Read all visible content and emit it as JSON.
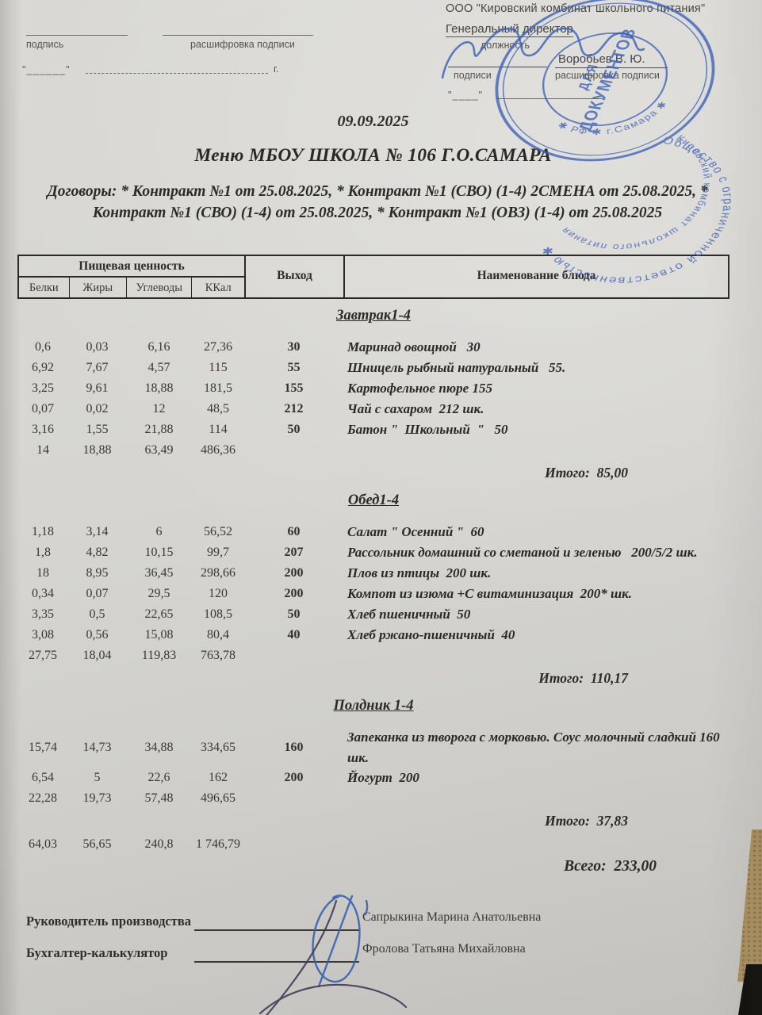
{
  "top_left": {
    "sign_label": "подпись",
    "decode_label": "расшифровка подписи",
    "date_blank": "\"______\"",
    "year_suffix": "г."
  },
  "top_right": {
    "company": "ООО \"Кировский комбинат школьного питания\"",
    "director_title": "Генеральный директор",
    "position_label": "должность",
    "sign_label": "подписи",
    "director_name": "Воробьев В. Ю.",
    "decode_label": "расшифровка подписи",
    "date_blank": "\"____\""
  },
  "stamp": {
    "outer_text": "Общество с ограниченной ответственностью ✱",
    "inner_top_text": "Кировский комбинат школьного питания",
    "inner_bottom_text": "✱ РФ ✱ г.Самара ✱",
    "center_line1": "ДЛЯ",
    "center_line2": "ДОКУМЕНТОВ",
    "color": "#3b60b6"
  },
  "header": {
    "date": "09.09.2025",
    "title": "Меню МБОУ ШКОЛА № 106 Г.О.САМАРА",
    "contracts": "Договоры: * Контракт №1 от 25.08.2025, * Контракт №1 (СВО) (1-4) 2СМЕНА от 25.08.2025, * Контракт №1 (СВО) (1-4) от 25.08.2025, * Контракт №1 (ОВЗ) (1-4) от 25.08.2025"
  },
  "table": {
    "group_header": "Пищевая ценность",
    "columns": [
      "Белки",
      "Жиры",
      "Углеводы",
      "ККал"
    ],
    "vyhod_header": "Выход",
    "dish_header": "Наименование блюда"
  },
  "sections": [
    {
      "title": "Завтрак1-4",
      "rows": [
        {
          "b": "0,6",
          "f": "0,03",
          "c": "6,16",
          "kcal": "27,36",
          "out": "30",
          "dish": "Маринад овощной   30"
        },
        {
          "b": "6,92",
          "f": "7,67",
          "c": "4,57",
          "kcal": "115",
          "out": "55",
          "dish": "Шницель рыбный натуральный   55."
        },
        {
          "b": "3,25",
          "f": "9,61",
          "c": "18,88",
          "kcal": "181,5",
          "out": "155",
          "dish": "Картофельное пюре 155"
        },
        {
          "b": "0,07",
          "f": "0,02",
          "c": "12",
          "kcal": "48,5",
          "out": "212",
          "dish": "Чай с сахаром  212 шк."
        },
        {
          "b": "3,16",
          "f": "1,55",
          "c": "21,88",
          "kcal": "114",
          "out": "50",
          "dish": "Батон \"  Школьный  \"   50"
        }
      ],
      "totals": [
        "14",
        "18,88",
        "63,49",
        "486,36"
      ],
      "itogo_label": "Итого:",
      "itogo_value": "85,00"
    },
    {
      "title": "Обед1-4",
      "rows": [
        {
          "b": "1,18",
          "f": "3,14",
          "c": "6",
          "kcal": "56,52",
          "out": "60",
          "dish": "Салат \" Осенний \"  60"
        },
        {
          "b": "1,8",
          "f": "4,82",
          "c": "10,15",
          "kcal": "99,7",
          "out": "207",
          "dish": "Рассольник домашний со сметаной и зеленью   200/5/2 шк."
        },
        {
          "b": "18",
          "f": "8,95",
          "c": "36,45",
          "kcal": "298,66",
          "out": "200",
          "dish": "Плов из птицы  200 шк."
        },
        {
          "b": "0,34",
          "f": "0,07",
          "c": "29,5",
          "kcal": "120",
          "out": "200",
          "dish": "Компот из изюма +С витаминизация  200* шк."
        },
        {
          "b": "3,35",
          "f": "0,5",
          "c": "22,65",
          "kcal": "108,5",
          "out": "50",
          "dish": "Хлеб пшеничный  50"
        },
        {
          "b": "3,08",
          "f": "0,56",
          "c": "15,08",
          "kcal": "80,4",
          "out": "40",
          "dish": "Хлеб ржано-пшеничный  40"
        }
      ],
      "totals": [
        "27,75",
        "18,04",
        "119,83",
        "763,78"
      ],
      "itogo_label": "Итого:",
      "itogo_value": "110,17"
    },
    {
      "title": "Полдник 1-4",
      "rows": [
        {
          "b": "15,74",
          "f": "14,73",
          "c": "34,88",
          "kcal": "334,65",
          "out": "160",
          "dish": "Запеканка из творога с морковью. Соус молочный сладкий 160 шк."
        },
        {
          "b": "6,54",
          "f": "5",
          "c": "22,6",
          "kcal": "162",
          "out": "200",
          "dish": "Йогурт  200"
        }
      ],
      "totals": [
        "22,28",
        "19,73",
        "57,48",
        "496,65"
      ],
      "itogo_label": "Итого:",
      "itogo_value": "37,83"
    }
  ],
  "grand_total": {
    "values": [
      "64,03",
      "56,65",
      "240,8",
      "1 746,79"
    ],
    "label": "Всего:",
    "value": "233,00"
  },
  "footer": {
    "signers": [
      {
        "label": "Руководитель производства",
        "name": "Сапрыкина Марина Анатольевна"
      },
      {
        "label": "Бухгалтер-калькулятор",
        "name": "Фролова Татьяна Михайловна"
      }
    ]
  }
}
